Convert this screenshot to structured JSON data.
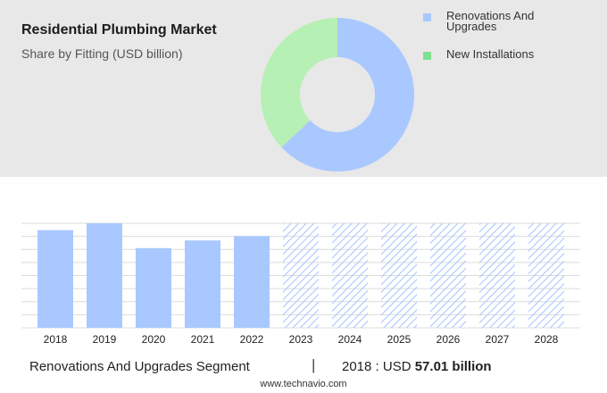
{
  "header": {
    "title": "Residential Plumbing Market",
    "subtitle": "Share by Fitting (USD billion)"
  },
  "donut_chart": {
    "type": "pie",
    "hole": true,
    "slices": [
      {
        "name": "Renovations And Upgrades",
        "share": 0.63,
        "color": "#a9c8ff"
      },
      {
        "name": "New Installations",
        "share": 0.37,
        "color": "#b6f0b4"
      }
    ]
  },
  "legend": {
    "items": [
      {
        "label": "Renovations And Upgrades",
        "color": "#a9c8ff"
      },
      {
        "label": "New Installations",
        "color": "#7fe08e"
      }
    ]
  },
  "chart_data": {
    "type": "bar",
    "categories": [
      "2018",
      "2019",
      "2020",
      "2021",
      "2022",
      "2023",
      "2024",
      "2025",
      "2026",
      "2027",
      "2028"
    ],
    "values": [
      57.01,
      61.0,
      46.5,
      51.0,
      53.5,
      null,
      null,
      null,
      null,
      null,
      null
    ],
    "forecast": [
      false,
      false,
      false,
      false,
      false,
      true,
      true,
      true,
      true,
      true,
      true
    ],
    "bar_color": "#a9c8ff",
    "forecast_color": "#a9c8ff",
    "ylim": [
      0,
      61
    ],
    "grid": true,
    "title": "",
    "xlabel": "",
    "ylabel": ""
  },
  "footer": {
    "segment": "Renovations And Upgrades Segment",
    "separator": "|",
    "year_label": "2018 : USD",
    "value": "57.01 billion",
    "source": "www.technavio.com"
  }
}
